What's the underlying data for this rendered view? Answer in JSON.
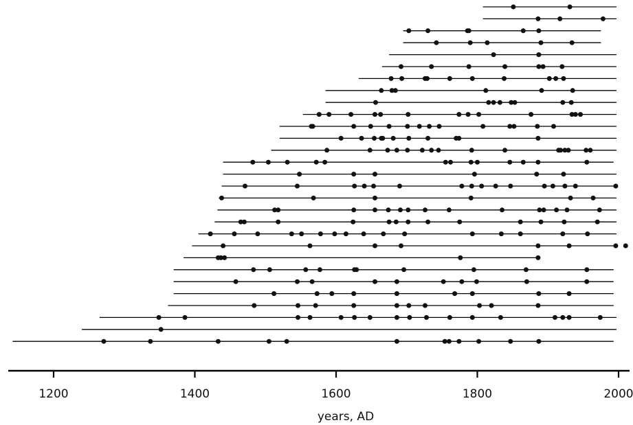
{
  "chart_data": {
    "type": "scatter",
    "xlabel": "years, AD",
    "xlim": [
      1140,
      2020
    ],
    "xticks": [
      1200,
      1400,
      1600,
      1800,
      2000
    ],
    "grid": false,
    "line_color": "#000000",
    "point_color": "#111111",
    "series": [
      {
        "span": [
          1808,
          1997
        ],
        "points": [
          1851,
          1931
        ]
      },
      {
        "span": [
          1808,
          1997
        ],
        "points": [
          1886,
          1917,
          1978
        ]
      },
      {
        "span": [
          1695,
          1975
        ],
        "points": [
          1703,
          1730,
          1786,
          1788,
          1865,
          1887
        ]
      },
      {
        "span": [
          1695,
          1975
        ],
        "points": [
          1742,
          1790,
          1814,
          1890,
          1934
        ]
      },
      {
        "span": [
          1675,
          1997
        ],
        "points": [
          1823,
          1887
        ]
      },
      {
        "span": [
          1665,
          1997
        ],
        "points": [
          1692,
          1735,
          1788,
          1839,
          1887,
          1893,
          1920
        ]
      },
      {
        "span": [
          1632,
          1997
        ],
        "points": [
          1678,
          1693,
          1726,
          1729,
          1761,
          1793,
          1838,
          1902,
          1911,
          1922
        ]
      },
      {
        "span": [
          1585,
          1997
        ],
        "points": [
          1664,
          1679,
          1684,
          1812,
          1891,
          1935
        ]
      },
      {
        "span": [
          1585,
          1997
        ],
        "points": [
          1656,
          1816,
          1823,
          1832,
          1848,
          1853,
          1921,
          1933
        ]
      },
      {
        "span": [
          1553,
          1997
        ],
        "points": [
          1576,
          1590,
          1621,
          1655,
          1663,
          1702,
          1774,
          1787,
          1802,
          1876,
          1934,
          1939,
          1946
        ]
      },
      {
        "span": [
          1520,
          1997
        ],
        "points": [
          1565,
          1567,
          1625,
          1649,
          1675,
          1701,
          1718,
          1732,
          1746,
          1808,
          1846,
          1852,
          1885,
          1908
        ]
      },
      {
        "span": [
          1520,
          1997
        ],
        "points": [
          1607,
          1636,
          1654,
          1664,
          1666,
          1681,
          1703,
          1730,
          1770,
          1774,
          1886
        ]
      },
      {
        "span": [
          1508,
          1997
        ],
        "points": [
          1587,
          1648,
          1673,
          1686,
          1701,
          1722,
          1735,
          1745,
          1792,
          1839,
          1915,
          1918,
          1924,
          1929,
          1954,
          1960
        ]
      },
      {
        "span": [
          1440,
          1993
        ],
        "points": [
          1482,
          1504,
          1531,
          1572,
          1584,
          1755,
          1762,
          1791,
          1800,
          1846,
          1865,
          1886,
          1955
        ]
      },
      {
        "span": [
          1440,
          1997
        ],
        "points": [
          1548,
          1625,
          1655,
          1796,
          1884,
          1922
        ]
      },
      {
        "span": [
          1438,
          1997
        ],
        "points": [
          1471,
          1545,
          1626,
          1640,
          1653,
          1690,
          1778,
          1792,
          1806,
          1826,
          1847,
          1895,
          1907,
          1924,
          1939,
          1996
        ]
      },
      {
        "span": [
          1434,
          1997
        ],
        "points": [
          1438,
          1568,
          1655,
          1791,
          1932,
          1964
        ]
      },
      {
        "span": [
          1432,
          1997
        ],
        "points": [
          1513,
          1518,
          1625,
          1655,
          1674,
          1691,
          1702,
          1726,
          1760,
          1835,
          1888,
          1894,
          1912,
          1927,
          1973
        ]
      },
      {
        "span": [
          1428,
          1997
        ],
        "points": [
          1465,
          1470,
          1518,
          1624,
          1675,
          1685,
          1702,
          1730,
          1775,
          1861,
          1890,
          1923,
          1970
        ]
      },
      {
        "span": [
          1405,
          1997
        ],
        "points": [
          1422,
          1456,
          1489,
          1537,
          1551,
          1578,
          1598,
          1614,
          1639,
          1667,
          1697,
          1793,
          1834,
          1861,
          1921,
          1956
        ]
      },
      {
        "span": [
          1396,
          1997
        ],
        "points": [
          1440,
          1563,
          1655,
          1692,
          1886,
          1930,
          1996,
          2010
        ]
      },
      {
        "span": [
          1384,
          1889
        ],
        "points": [
          1433,
          1437,
          1442,
          1776,
          1886
        ]
      },
      {
        "span": [
          1370,
          1993
        ],
        "points": [
          1483,
          1506,
          1557,
          1577,
          1626,
          1629,
          1696,
          1795,
          1869,
          1955
        ]
      },
      {
        "span": [
          1370,
          1993
        ],
        "points": [
          1458,
          1545,
          1566,
          1655,
          1686,
          1752,
          1778,
          1799,
          1870,
          1955
        ]
      },
      {
        "span": [
          1370,
          1993
        ],
        "points": [
          1512,
          1573,
          1594,
          1625,
          1686,
          1768,
          1793,
          1887,
          1930
        ]
      },
      {
        "span": [
          1362,
          1993
        ],
        "points": [
          1484,
          1546,
          1571,
          1625,
          1686,
          1703,
          1726,
          1803,
          1820,
          1886
        ]
      },
      {
        "span": [
          1265,
          1997
        ],
        "points": [
          1349,
          1386,
          1546,
          1563,
          1607,
          1626,
          1648,
          1686,
          1704,
          1728,
          1761,
          1793,
          1833,
          1910,
          1921,
          1930,
          1974
        ]
      },
      {
        "span": [
          1240,
          1997
        ],
        "points": [
          1352
        ]
      },
      {
        "span": [
          1142,
          1993
        ],
        "points": [
          1271,
          1337,
          1433,
          1505,
          1530,
          1686,
          1754,
          1760,
          1774,
          1802,
          1847,
          1887
        ]
      }
    ]
  }
}
